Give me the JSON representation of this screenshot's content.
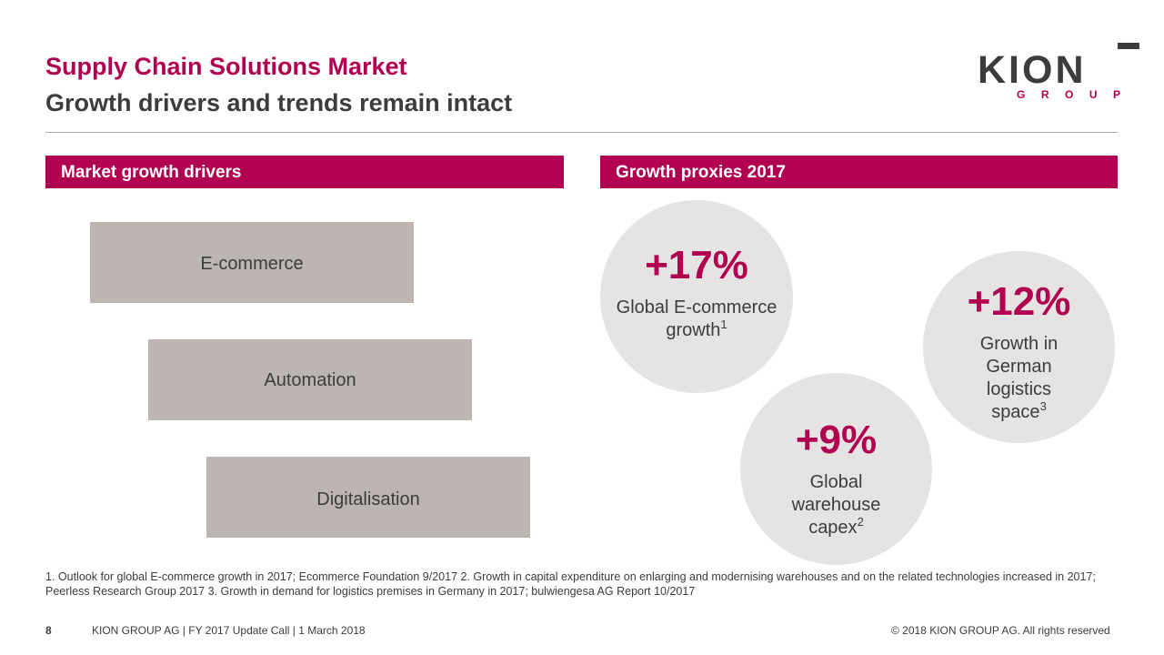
{
  "header": {
    "title": "Supply Chain Solutions Market",
    "subtitle": "Growth drivers and trends remain intact"
  },
  "logo": {
    "word": "KION",
    "group_letters": [
      "G",
      "R",
      "O",
      "U",
      "P"
    ]
  },
  "left_section": {
    "heading": "Market growth drivers",
    "drivers": [
      "E-commerce",
      "Automation",
      "Digitalisation"
    ]
  },
  "right_section": {
    "heading": "Growth proxies 2017",
    "proxies": [
      {
        "value": "+17%",
        "label": "Global E-commerce growth",
        "footnote_ref": "1"
      },
      {
        "value": "+12%",
        "label": "Growth in German logistics space",
        "footnote_ref": "3"
      },
      {
        "value": "+9%",
        "label": "Global warehouse capex",
        "footnote_ref": "2"
      }
    ]
  },
  "footnotes": "1.    Outlook for global E-commerce growth in 2017; Ecommerce Foundation 9/2017    2.     Growth in capital expenditure on enlarging and modernising warehouses and on the related technologies increased in 2017; Peerless Research Group 2017    3.    Growth in demand for logistics premises in Germany in 2017; bulwiengesa AG Report 10/2017",
  "footer": {
    "page_number": "8",
    "left_text": "KION GROUP AG | FY 2017 Update Call | 1 March 2018",
    "right_text": "© 2018 KION GROUP AG. All rights reserved"
  },
  "colors": {
    "accent": "#b0004f",
    "text": "#3c3c3c",
    "driver_box": "#bcb5b1",
    "bubble": "#e6e4e3"
  }
}
